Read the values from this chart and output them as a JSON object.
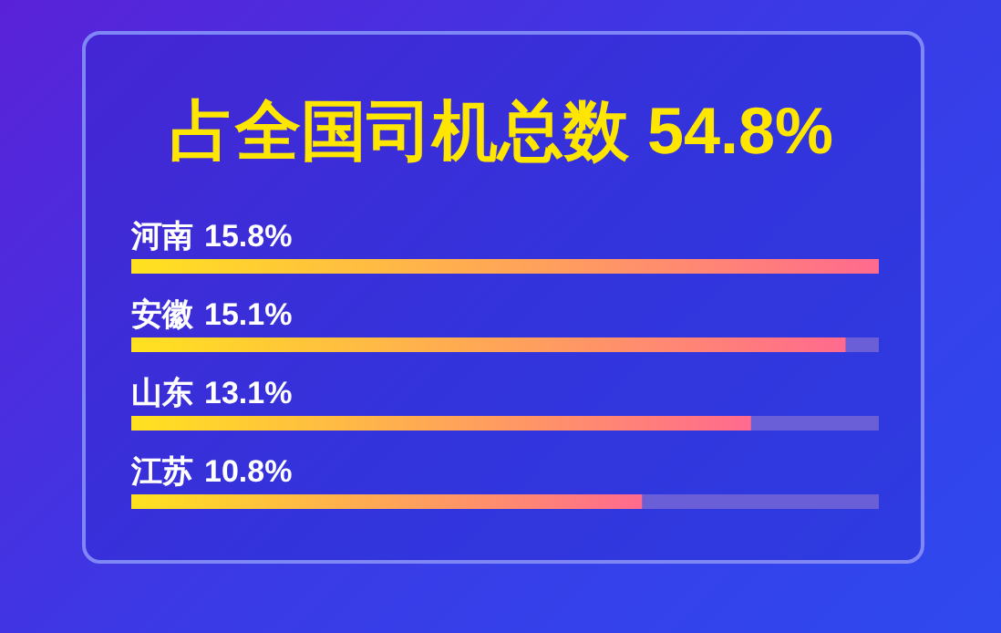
{
  "chart_data": {
    "type": "bar",
    "orientation": "horizontal",
    "title": "占全国司机总数 54.8%",
    "categories": [
      "河南",
      "安徽",
      "山东",
      "江苏"
    ],
    "values": [
      15.8,
      15.1,
      13.1,
      10.8
    ],
    "value_labels": [
      "15.8%",
      "15.1%",
      "13.1%",
      "10.8%"
    ],
    "color": "#ffe21f"
  }
}
